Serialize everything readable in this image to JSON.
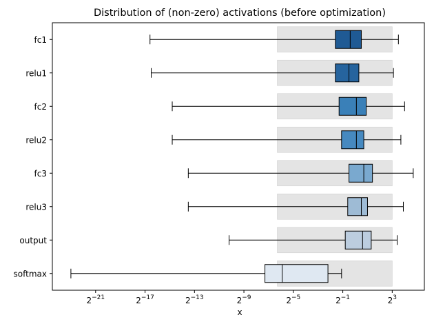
{
  "chart_data": {
    "type": "boxplot",
    "title": "Distribution of (non-zero) activations (before optimization)",
    "xlabel": "x",
    "ylabel": "",
    "x_scale": "log2",
    "xlim_log2": [
      -24.5,
      5.6
    ],
    "xticks": [
      {
        "exp": -21,
        "label": "2",
        "sup": "−21"
      },
      {
        "exp": -17,
        "label": "2",
        "sup": "−17"
      },
      {
        "exp": -13,
        "label": "2",
        "sup": "−13"
      },
      {
        "exp": -9,
        "label": "2",
        "sup": "−9"
      },
      {
        "exp": -5,
        "label": "2",
        "sup": "−5"
      },
      {
        "exp": -1,
        "label": "2",
        "sup": "−1"
      },
      {
        "exp": 3,
        "label": "2",
        "sup": "3"
      }
    ],
    "reference_band_log2": [
      -6.3,
      3.0
    ],
    "reference_band_color": "#e4e4e4",
    "grid": false,
    "series": [
      {
        "name": "fc1",
        "whisker_low": -16.6,
        "q1": -1.6,
        "median": -0.4,
        "q3": 0.5,
        "whisker_high": 3.5,
        "color": "#1f5a94"
      },
      {
        "name": "relu1",
        "whisker_low": -16.5,
        "q1": -1.6,
        "median": -0.5,
        "q3": 0.3,
        "whisker_high": 3.1,
        "color": "#26649e"
      },
      {
        "name": "fc2",
        "whisker_low": -14.8,
        "q1": -1.3,
        "median": 0.1,
        "q3": 0.9,
        "whisker_high": 4.0,
        "color": "#3a80b8"
      },
      {
        "name": "relu2",
        "whisker_low": -14.8,
        "q1": -1.1,
        "median": 0.1,
        "q3": 0.7,
        "whisker_high": 3.7,
        "color": "#4689c0"
      },
      {
        "name": "fc3",
        "whisker_low": -13.5,
        "q1": -0.5,
        "median": 0.7,
        "q3": 1.4,
        "whisker_high": 4.7,
        "color": "#7aa9cf"
      },
      {
        "name": "relu3",
        "whisker_low": -13.5,
        "q1": -0.6,
        "median": 0.5,
        "q3": 1.0,
        "whisker_high": 3.9,
        "color": "#9ebbd5"
      },
      {
        "name": "output",
        "whisker_low": -10.2,
        "q1": -0.8,
        "median": 0.6,
        "q3": 1.3,
        "whisker_high": 3.4,
        "color": "#bccddf"
      },
      {
        "name": "softmax",
        "whisker_low": -23.0,
        "q1": -7.3,
        "median": -5.9,
        "q3": -2.2,
        "whisker_high": -1.1,
        "color": "#dfe8f2"
      }
    ]
  }
}
